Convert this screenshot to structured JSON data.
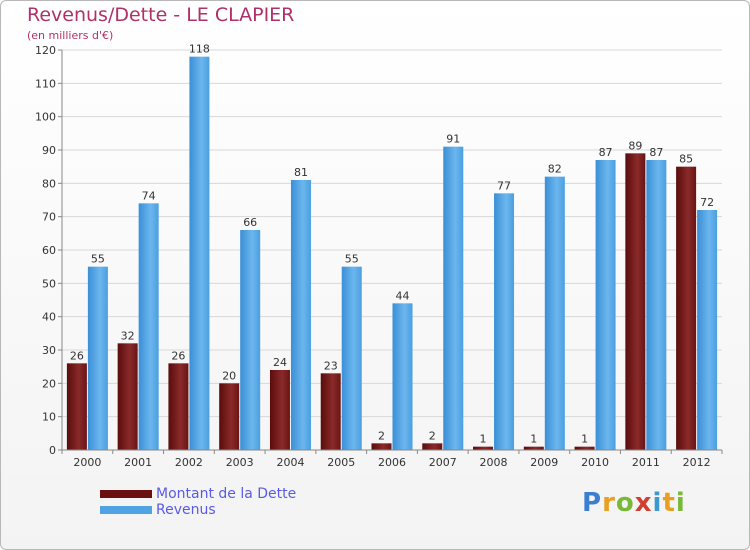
{
  "title": "Revenus/Dette - LE CLAPIER",
  "subtitle": "(en milliers d'€)",
  "logo_text": "Proxiti",
  "colors": {
    "dette": "#7a1a1a",
    "revenus": "#4fa3e3",
    "title": "#b0306a",
    "legend_text": "#5a5ae8"
  },
  "chart_data": {
    "type": "bar",
    "categories": [
      "2000",
      "2001",
      "2002",
      "2003",
      "2004",
      "2005",
      "2006",
      "2007",
      "2008",
      "2009",
      "2010",
      "2011",
      "2012"
    ],
    "series": [
      {
        "name": "Montant de la Dette",
        "values": [
          26,
          32,
          26,
          20,
          24,
          23,
          2,
          2,
          1,
          1,
          1,
          89,
          85
        ]
      },
      {
        "name": "Revenus",
        "values": [
          55,
          74,
          118,
          66,
          81,
          55,
          44,
          91,
          77,
          82,
          87,
          87,
          72
        ]
      }
    ],
    "ylim": [
      0,
      120
    ],
    "yticks": [
      0,
      10,
      20,
      30,
      40,
      50,
      60,
      70,
      80,
      90,
      100,
      110,
      120
    ],
    "grid": true,
    "legend_position": "bottom-left"
  }
}
